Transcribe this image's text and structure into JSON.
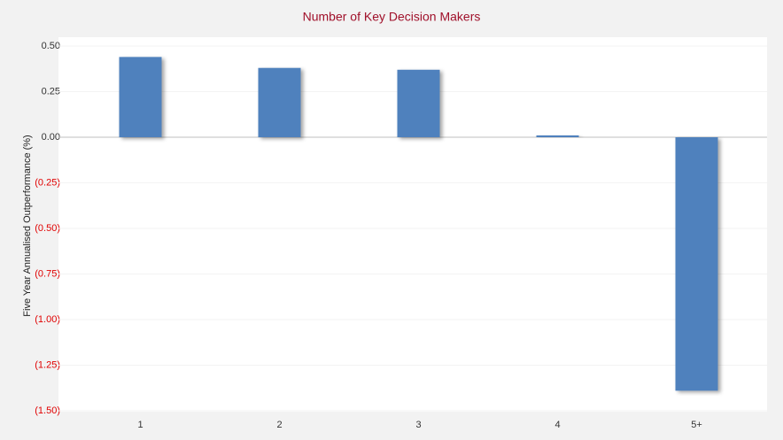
{
  "chart_data": {
    "type": "bar",
    "title": "Number of Key Decision Makers",
    "y_label": "Five Year Annualised Outperformance (%)",
    "categories": [
      "1",
      "2",
      "3",
      "4",
      "5+"
    ],
    "values": [
      0.44,
      0.38,
      0.37,
      0.01,
      -1.39
    ],
    "color": "#4f81bd",
    "ylim": [
      -1.5,
      0.5
    ],
    "yticks": [
      {
        "value": 0.5,
        "label": "0.50"
      },
      {
        "value": 0.25,
        "label": "0.25"
      },
      {
        "value": 0,
        "label": "0.00"
      },
      {
        "value": -0.25,
        "label": "(0.25)"
      },
      {
        "value": -0.5,
        "label": "(0.50)"
      },
      {
        "value": -0.75,
        "label": "(0.75)"
      },
      {
        "value": -1,
        "label": "(1.00)"
      },
      {
        "value": -1.25,
        "label": "(1.25)"
      },
      {
        "value": -1.5,
        "label": "(1.50)"
      }
    ],
    "negative_tick_color": "#e00000",
    "grid": true
  }
}
